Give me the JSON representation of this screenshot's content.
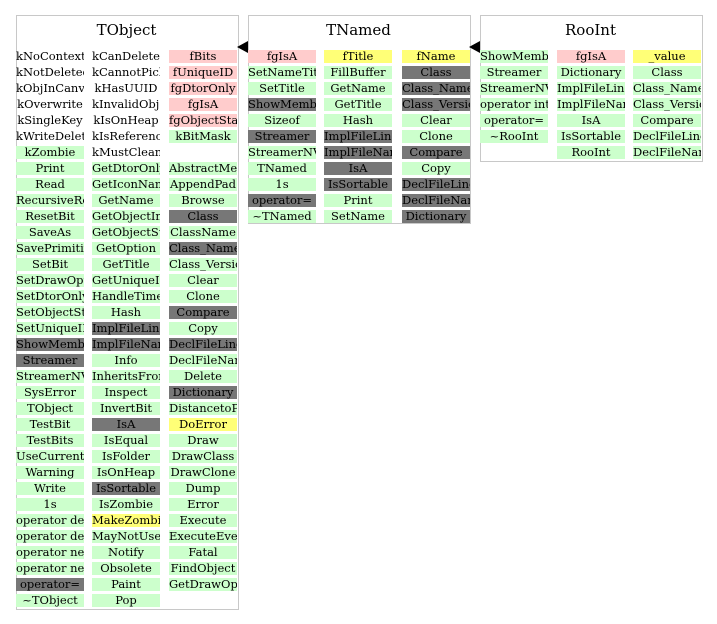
{
  "classes": [
    {
      "name": "TObject",
      "columns": [
        [
          [
            "kNoContextMenu",
            "n"
          ],
          [
            "kNotDeleted",
            "n"
          ],
          [
            "kObjInCanvas",
            "n"
          ],
          [
            "kOverwrite",
            "n"
          ],
          [
            "kSingleKey",
            "n"
          ],
          [
            "kWriteDelete",
            "n"
          ],
          [
            "kZombie",
            "g"
          ],
          [
            "Print",
            "g"
          ],
          [
            "Read",
            "g"
          ],
          [
            "RecursiveRemove",
            "g"
          ],
          [
            "ResetBit",
            "g"
          ],
          [
            "SaveAs",
            "g"
          ],
          [
            "SavePrimitive",
            "g"
          ],
          [
            "SetBit",
            "g"
          ],
          [
            "SetDrawOption",
            "g"
          ],
          [
            "SetDtorOnly",
            "g"
          ],
          [
            "SetObjectStat",
            "g"
          ],
          [
            "SetUniqueID",
            "g"
          ],
          [
            "ShowMembers",
            "k"
          ],
          [
            "Streamer",
            "k"
          ],
          [
            "StreamerNVirtual",
            "g"
          ],
          [
            "SysError",
            "g"
          ],
          [
            "TObject",
            "g"
          ],
          [
            "TestBit",
            "g"
          ],
          [
            "TestBits",
            "g"
          ],
          [
            "UseCurrentStyle",
            "g"
          ],
          [
            "Warning",
            "g"
          ],
          [
            "Write",
            "g"
          ],
          [
            "1s",
            "g"
          ],
          [
            "operator delete",
            "g"
          ],
          [
            "operator delete[]",
            "g"
          ],
          [
            "operator new",
            "g"
          ],
          [
            "operator new[]",
            "g"
          ],
          [
            "operator=",
            "k"
          ],
          [
            "~TObject",
            "g"
          ]
        ],
        [
          [
            "kCanDelete",
            "n"
          ],
          [
            "kCannotPick",
            "n"
          ],
          [
            "kHasUUID",
            "n"
          ],
          [
            "kInvalidObject",
            "n"
          ],
          [
            "kIsOnHeap",
            "n"
          ],
          [
            "kIsReferenced",
            "n"
          ],
          [
            "kMustCleanup",
            "n"
          ],
          [
            "GetDtorOnly",
            "g"
          ],
          [
            "GetIconName",
            "g"
          ],
          [
            "GetName",
            "g"
          ],
          [
            "GetObjectInfo",
            "g"
          ],
          [
            "GetObjectStat",
            "g"
          ],
          [
            "GetOption",
            "g"
          ],
          [
            "GetTitle",
            "g"
          ],
          [
            "GetUniqueID",
            "g"
          ],
          [
            "HandleTimer",
            "g"
          ],
          [
            "Hash",
            "g"
          ],
          [
            "ImplFileLine",
            "k"
          ],
          [
            "ImplFileName",
            "k"
          ],
          [
            "Info",
            "g"
          ],
          [
            "InheritsFrom",
            "g"
          ],
          [
            "Inspect",
            "g"
          ],
          [
            "InvertBit",
            "g"
          ],
          [
            "IsA",
            "k"
          ],
          [
            "IsEqual",
            "g"
          ],
          [
            "IsFolder",
            "g"
          ],
          [
            "IsOnHeap",
            "g"
          ],
          [
            "IsSortable",
            "k"
          ],
          [
            "IsZombie",
            "g"
          ],
          [
            "MakeZombie",
            "y"
          ],
          [
            "MayNotUse",
            "g"
          ],
          [
            "Notify",
            "g"
          ],
          [
            "Obsolete",
            "g"
          ],
          [
            "Paint",
            "g"
          ],
          [
            "Pop",
            "g"
          ]
        ],
        [
          [
            "fBits",
            "p"
          ],
          [
            "fUniqueID",
            "p"
          ],
          [
            "fgDtorOnly",
            "p"
          ],
          [
            "fgIsA",
            "p"
          ],
          [
            "fgObjectStat",
            "p"
          ],
          [
            "kBitMask",
            "g"
          ],
          [
            "",
            "n"
          ],
          [
            "AbstractMethod",
            "g"
          ],
          [
            "AppendPad",
            "g"
          ],
          [
            "Browse",
            "g"
          ],
          [
            "Class",
            "k"
          ],
          [
            "ClassName",
            "g"
          ],
          [
            "Class_Name",
            "k"
          ],
          [
            "Class_Version",
            "g"
          ],
          [
            "Clear",
            "g"
          ],
          [
            "Clone",
            "g"
          ],
          [
            "Compare",
            "k"
          ],
          [
            "Copy",
            "g"
          ],
          [
            "DeclFileLine",
            "k"
          ],
          [
            "DeclFileName",
            "g"
          ],
          [
            "Delete",
            "g"
          ],
          [
            "Dictionary",
            "k"
          ],
          [
            "DistancetoPrimitive",
            "g"
          ],
          [
            "DoError",
            "y"
          ],
          [
            "Draw",
            "g"
          ],
          [
            "DrawClass",
            "g"
          ],
          [
            "DrawClone",
            "g"
          ],
          [
            "Dump",
            "g"
          ],
          [
            "Error",
            "g"
          ],
          [
            "Execute",
            "g"
          ],
          [
            "ExecuteEvent",
            "g"
          ],
          [
            "Fatal",
            "g"
          ],
          [
            "FindObject",
            "g"
          ],
          [
            "GetDrawOption",
            "g"
          ]
        ]
      ]
    },
    {
      "name": "TNamed",
      "columns": [
        [
          [
            "fgIsA",
            "p"
          ],
          [
            "SetNameTitle",
            "g"
          ],
          [
            "SetTitle",
            "g"
          ],
          [
            "ShowMembers",
            "k"
          ],
          [
            "Sizeof",
            "g"
          ],
          [
            "Streamer",
            "k"
          ],
          [
            "StreamerNVirtual",
            "g"
          ],
          [
            "TNamed",
            "g"
          ],
          [
            "1s",
            "g"
          ],
          [
            "operator=",
            "k"
          ],
          [
            "~TNamed",
            "g"
          ]
        ],
        [
          [
            "fTitle",
            "y"
          ],
          [
            "FillBuffer",
            "g"
          ],
          [
            "GetName",
            "g"
          ],
          [
            "GetTitle",
            "g"
          ],
          [
            "Hash",
            "g"
          ],
          [
            "ImplFileLine",
            "k"
          ],
          [
            "ImplFileName",
            "k"
          ],
          [
            "IsA",
            "k"
          ],
          [
            "IsSortable",
            "k"
          ],
          [
            "Print",
            "g"
          ],
          [
            "SetName",
            "g"
          ]
        ],
        [
          [
            "fName",
            "y"
          ],
          [
            "Class",
            "k"
          ],
          [
            "Class_Name",
            "k"
          ],
          [
            "Class_Version",
            "k"
          ],
          [
            "Clear",
            "g"
          ],
          [
            "Clone",
            "g"
          ],
          [
            "Compare",
            "k"
          ],
          [
            "Copy",
            "g"
          ],
          [
            "DeclFileLine",
            "k"
          ],
          [
            "DeclFileName",
            "k"
          ],
          [
            "Dictionary",
            "k"
          ]
        ]
      ]
    },
    {
      "name": "RooInt",
      "columns": [
        [
          [
            "ShowMembers",
            "g"
          ],
          [
            "Streamer",
            "g"
          ],
          [
            "StreamerNVirtual",
            "g"
          ],
          [
            "operator int",
            "g"
          ],
          [
            "operator=",
            "g"
          ],
          [
            "~RooInt",
            "g"
          ]
        ],
        [
          [
            "fgIsA",
            "p"
          ],
          [
            "Dictionary",
            "g"
          ],
          [
            "ImplFileLine",
            "g"
          ],
          [
            "ImplFileName",
            "g"
          ],
          [
            "IsA",
            "g"
          ],
          [
            "IsSortable",
            "g"
          ],
          [
            "RooInt",
            "g"
          ]
        ],
        [
          [
            "_value",
            "y"
          ],
          [
            "Class",
            "g"
          ],
          [
            "Class_Name",
            "g"
          ],
          [
            "Class_Version",
            "g"
          ],
          [
            "Compare",
            "g"
          ],
          [
            "DeclFileLine",
            "g"
          ],
          [
            "DeclFileName",
            "g"
          ]
        ]
      ]
    }
  ],
  "colors": {
    "method": "#ccffcc",
    "inherited": "#777777",
    "member": "#ffcccc",
    "data": "#ffff77",
    "border": "#c8c8c8",
    "arrow": "#000000"
  }
}
